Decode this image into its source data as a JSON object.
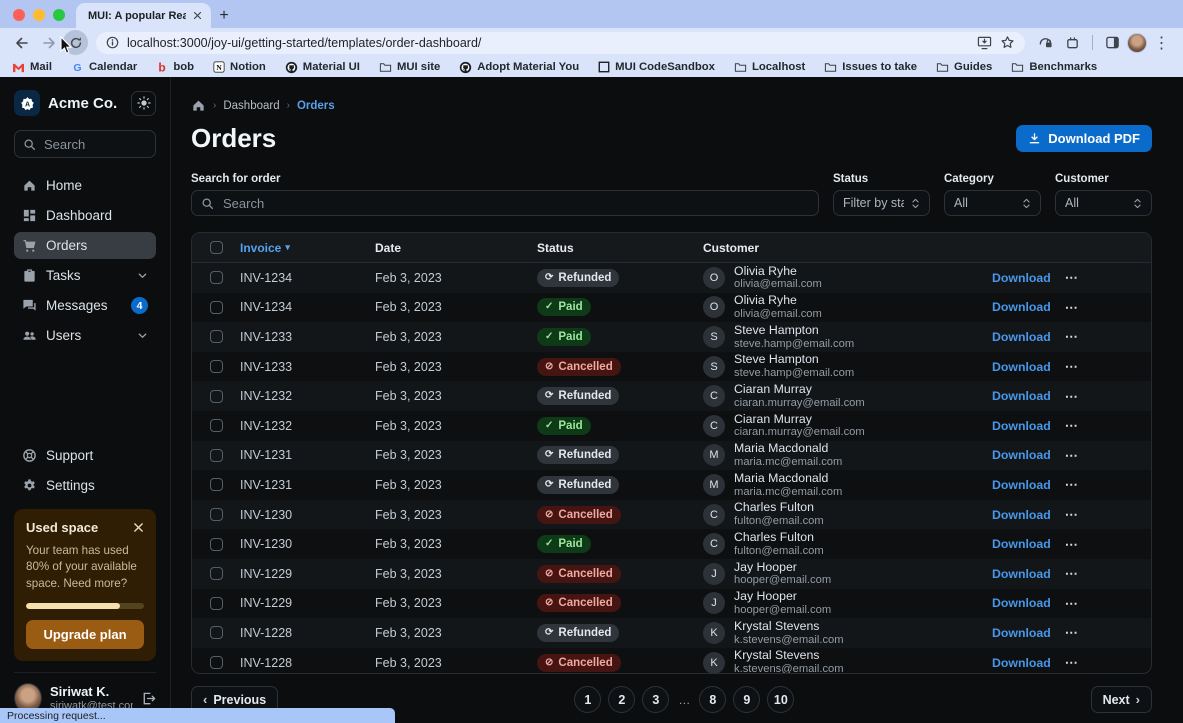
{
  "browser": {
    "tab": {
      "title": "MUI: A popular React UI fram"
    },
    "url": "localhost:3000/joy-ui/getting-started/templates/order-dashboard/",
    "bookmarks": [
      {
        "label": "Mail",
        "icon": "gmail-icon"
      },
      {
        "label": "Calendar",
        "icon": "google-icon"
      },
      {
        "label": "bob",
        "icon": "letter-b-icon"
      },
      {
        "label": "Notion",
        "icon": "notion-icon"
      },
      {
        "label": "Material UI",
        "icon": "github-icon"
      },
      {
        "label": "MUI site",
        "icon": "folder-icon"
      },
      {
        "label": "Adopt Material You",
        "icon": "github-icon"
      },
      {
        "label": "MUI CodeSandbox",
        "icon": "codesandbox-icon"
      },
      {
        "label": "Localhost",
        "icon": "folder-icon"
      },
      {
        "label": "Issues to take",
        "icon": "folder-icon"
      },
      {
        "label": "Guides",
        "icon": "folder-icon"
      },
      {
        "label": "Benchmarks",
        "icon": "folder-icon"
      }
    ],
    "status_bubble": "Processing request..."
  },
  "sidebar": {
    "company": "Acme Co.",
    "search_placeholder": "Search",
    "nav": [
      {
        "label": "Home",
        "icon": "home-icon"
      },
      {
        "label": "Dashboard",
        "icon": "dashboard-icon"
      },
      {
        "label": "Orders",
        "icon": "cart-icon",
        "selected": true
      },
      {
        "label": "Tasks",
        "icon": "tasks-icon",
        "chevron": true
      },
      {
        "label": "Messages",
        "icon": "messages-icon",
        "badge": "4"
      },
      {
        "label": "Users",
        "icon": "users-icon",
        "chevron": true
      }
    ],
    "footer_nav": [
      {
        "label": "Support",
        "icon": "support-icon"
      },
      {
        "label": "Settings",
        "icon": "settings-icon"
      }
    ],
    "usage_card": {
      "title": "Used space",
      "body": "Your team has used 80% of your available space. Need more?",
      "progress_percent": 80,
      "cta": "Upgrade plan"
    },
    "user": {
      "name": "Siriwat K.",
      "email": "siriwatk@test.com"
    }
  },
  "main": {
    "breadcrumb": {
      "items": [
        "Dashboard",
        "Orders"
      ]
    },
    "title": "Orders",
    "download_button": "Download PDF",
    "filters": {
      "search_label": "Search for order",
      "search_placeholder": "Search",
      "selects": [
        {
          "label": "Status",
          "value": "Filter by status"
        },
        {
          "label": "Category",
          "value": "All"
        },
        {
          "label": "Customer",
          "value": "All"
        }
      ]
    },
    "table": {
      "columns": [
        "Invoice",
        "Date",
        "Status",
        "Customer"
      ],
      "download_label": "Download",
      "rows": [
        {
          "invoice": "INV-1234",
          "date": "Feb 3, 2023",
          "status": "Refunded",
          "initial": "O",
          "name": "Olivia Ryhe",
          "email": "olivia@email.com"
        },
        {
          "invoice": "INV-1234",
          "date": "Feb 3, 2023",
          "status": "Paid",
          "initial": "O",
          "name": "Olivia Ryhe",
          "email": "olivia@email.com"
        },
        {
          "invoice": "INV-1233",
          "date": "Feb 3, 2023",
          "status": "Paid",
          "initial": "S",
          "name": "Steve Hampton",
          "email": "steve.hamp@email.com"
        },
        {
          "invoice": "INV-1233",
          "date": "Feb 3, 2023",
          "status": "Cancelled",
          "initial": "S",
          "name": "Steve Hampton",
          "email": "steve.hamp@email.com"
        },
        {
          "invoice": "INV-1232",
          "date": "Feb 3, 2023",
          "status": "Refunded",
          "initial": "C",
          "name": "Ciaran Murray",
          "email": "ciaran.murray@email.com"
        },
        {
          "invoice": "INV-1232",
          "date": "Feb 3, 2023",
          "status": "Paid",
          "initial": "C",
          "name": "Ciaran Murray",
          "email": "ciaran.murray@email.com"
        },
        {
          "invoice": "INV-1231",
          "date": "Feb 3, 2023",
          "status": "Refunded",
          "initial": "M",
          "name": "Maria Macdonald",
          "email": "maria.mc@email.com"
        },
        {
          "invoice": "INV-1231",
          "date": "Feb 3, 2023",
          "status": "Refunded",
          "initial": "M",
          "name": "Maria Macdonald",
          "email": "maria.mc@email.com"
        },
        {
          "invoice": "INV-1230",
          "date": "Feb 3, 2023",
          "status": "Cancelled",
          "initial": "C",
          "name": "Charles Fulton",
          "email": "fulton@email.com"
        },
        {
          "invoice": "INV-1230",
          "date": "Feb 3, 2023",
          "status": "Paid",
          "initial": "C",
          "name": "Charles Fulton",
          "email": "fulton@email.com"
        },
        {
          "invoice": "INV-1229",
          "date": "Feb 3, 2023",
          "status": "Cancelled",
          "initial": "J",
          "name": "Jay Hooper",
          "email": "hooper@email.com"
        },
        {
          "invoice": "INV-1229",
          "date": "Feb 3, 2023",
          "status": "Cancelled",
          "initial": "J",
          "name": "Jay Hooper",
          "email": "hooper@email.com"
        },
        {
          "invoice": "INV-1228",
          "date": "Feb 3, 2023",
          "status": "Refunded",
          "initial": "K",
          "name": "Krystal Stevens",
          "email": "k.stevens@email.com"
        },
        {
          "invoice": "INV-1228",
          "date": "Feb 3, 2023",
          "status": "Cancelled",
          "initial": "K",
          "name": "Krystal Stevens",
          "email": "k.stevens@email.com"
        }
      ]
    },
    "pagination": {
      "previous": "Previous",
      "next": "Next",
      "pages": [
        "1",
        "2",
        "3",
        "…",
        "8",
        "9",
        "10"
      ]
    }
  },
  "status_styles": {
    "Paid": {
      "variant": "success",
      "icon": "check-icon"
    },
    "Refunded": {
      "variant": "neutral",
      "icon": "autorenew-icon"
    },
    "Cancelled": {
      "variant": "danger",
      "icon": "block-icon"
    }
  },
  "colors": {
    "primary": "#0b6bcb",
    "link_blue": "#4798ea",
    "success_bg": "#0e3a17",
    "success_fg": "#9ce79c",
    "danger_bg": "#471511",
    "danger_fg": "#f0a8a0",
    "neutral_chip_bg": "#2f353b",
    "neutral_chip_fg": "#e2e7ec",
    "warning_card_bg": "#2f1d04",
    "warning_button_bg": "#9a5b13",
    "badge_bg": "#0b6bcb",
    "status_bubble_bg": "#a9c6f8"
  }
}
